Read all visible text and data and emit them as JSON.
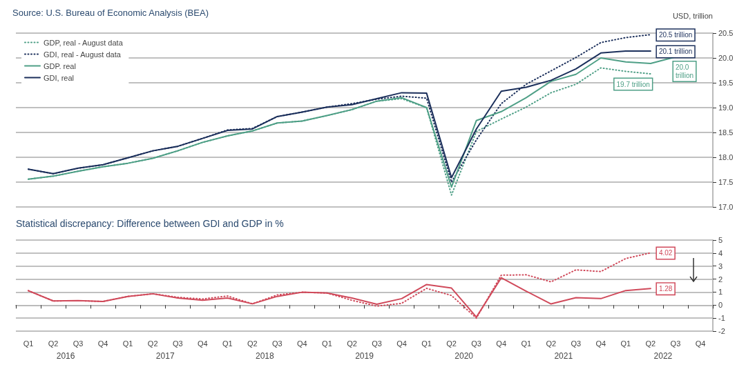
{
  "chart_data": [
    {
      "type": "line",
      "annotations": [
        "Source: U.S. Bureau of Economic Analysis (BEA)"
      ],
      "ylabel": "USD, trillion",
      "categories": [
        null,
        null,
        null,
        null,
        null,
        null,
        null,
        null,
        null,
        null,
        null,
        null,
        null,
        null,
        null,
        null,
        null,
        null,
        null,
        null,
        null,
        null,
        null,
        null,
        null,
        null,
        null,
        null
      ],
      "ylim": [
        17,
        20.5
      ],
      "yticks": [
        {
          "value": 17,
          "label": "17.0"
        },
        {
          "value": 17.5,
          "label": "17.5"
        },
        {
          "value": 18,
          "label": "18.0"
        },
        {
          "value": 18.5,
          "label": "18.5"
        },
        {
          "value": 19,
          "label": "19.0"
        },
        {
          "value": 19.5,
          "label": "19.5"
        },
        {
          "value": 20,
          "label": "20.0"
        },
        {
          "value": 20.5,
          "label": "20.5"
        }
      ],
      "tick_labels": "y",
      "grid": "y",
      "legend": "top left",
      "marker": "none",
      "series": [
        {
          "name": "GDP, real - August data",
          "color": "#4e9f86",
          "line_style": "dotted",
          "values": [
            17.56,
            17.62,
            17.72,
            17.81,
            17.88,
            17.98,
            18.13,
            18.3,
            18.43,
            18.53,
            18.69,
            18.73,
            18.84,
            18.96,
            19.13,
            19.18,
            19.0,
            17.24,
            18.52,
            18.77,
            19.01,
            19.3,
            19.47,
            19.8,
            19.73,
            19.68,
            null,
            null
          ],
          "value_labels": [
            null,
            null,
            null,
            null,
            null,
            null,
            null,
            null,
            null,
            null,
            null,
            null,
            null,
            null,
            null,
            null,
            null,
            null,
            null,
            null,
            null,
            null,
            null,
            null,
            null,
            "19.7 trillion",
            null,
            null
          ]
        },
        {
          "name": "GDI, real - August data",
          "color": "#1b2f5b",
          "line_style": "dotted",
          "values": [
            17.76,
            17.67,
            17.78,
            17.85,
            17.99,
            18.13,
            18.22,
            18.38,
            18.55,
            18.58,
            18.82,
            18.91,
            19.01,
            19.08,
            19.17,
            19.23,
            19.19,
            17.5,
            18.35,
            19.08,
            19.47,
            19.74,
            20.01,
            20.31,
            20.41,
            20.47,
            null,
            null
          ],
          "value_labels": [
            null,
            null,
            null,
            null,
            null,
            null,
            null,
            null,
            null,
            null,
            null,
            null,
            null,
            null,
            null,
            null,
            null,
            null,
            null,
            null,
            null,
            null,
            null,
            null,
            null,
            "20.5 trillion",
            null,
            null
          ]
        },
        {
          "name": "GDP. real",
          "color": "#4e9f86",
          "line_style": "solid",
          "values": [
            17.56,
            17.62,
            17.72,
            17.81,
            17.88,
            17.98,
            18.13,
            18.3,
            18.43,
            18.53,
            18.69,
            18.73,
            18.84,
            18.96,
            19.13,
            19.2,
            19.0,
            17.4,
            18.74,
            18.92,
            19.2,
            19.53,
            19.67,
            20.0,
            19.92,
            19.89,
            20.02,
            null
          ],
          "value_labels": [
            null,
            null,
            null,
            null,
            null,
            null,
            null,
            null,
            null,
            null,
            null,
            null,
            null,
            null,
            null,
            null,
            null,
            null,
            null,
            null,
            null,
            null,
            null,
            null,
            null,
            null,
            "20.0 trillion",
            null
          ]
        },
        {
          "name": "GDI, real",
          "color": "#1b2f5b",
          "line_style": "solid",
          "values": [
            17.76,
            17.67,
            17.78,
            17.85,
            17.99,
            18.13,
            18.22,
            18.38,
            18.54,
            18.57,
            18.82,
            18.91,
            19.01,
            19.06,
            19.18,
            19.3,
            19.29,
            17.59,
            18.57,
            19.33,
            19.41,
            19.55,
            19.78,
            20.1,
            20.14,
            20.14,
            null,
            null
          ],
          "value_labels": [
            null,
            null,
            null,
            null,
            null,
            null,
            null,
            null,
            null,
            null,
            null,
            null,
            null,
            null,
            null,
            null,
            null,
            null,
            null,
            null,
            null,
            null,
            null,
            null,
            null,
            "20.1 trillion",
            null,
            null
          ]
        }
      ]
    },
    {
      "type": "line",
      "title": "Statistical discrepancy: Difference between GDI and GDP in %",
      "annotations": [
        "2016",
        "2017",
        "2018",
        "2019",
        "2020",
        "2021",
        "2022"
      ],
      "categories": [
        "Q1",
        "Q2",
        "Q3",
        "Q4",
        "Q1",
        "Q2",
        "Q3",
        "Q4",
        "Q1",
        "Q2",
        "Q3",
        "Q4",
        "Q1",
        "Q2",
        "Q3",
        "Q4",
        "Q1",
        "Q2",
        "Q3",
        "Q4",
        "Q1",
        "Q2",
        "Q3",
        "Q4",
        "Q1",
        "Q2",
        "Q3",
        "Q4"
      ],
      "ylim": [
        -2,
        5
      ],
      "yticks": [
        -2,
        -1,
        0,
        1,
        2,
        3,
        4,
        5
      ],
      "grid": "y",
      "legend": false,
      "marker": "none",
      "series": [
        {
          "color": "#d0495a",
          "line_style": "dotted",
          "values": [
            1.11,
            0.32,
            0.34,
            0.28,
            0.67,
            0.87,
            0.6,
            0.47,
            0.7,
            0.1,
            0.78,
            0.99,
            0.93,
            0.37,
            -0.08,
            0.14,
            1.29,
            0.74,
            -1.0,
            2.3,
            2.33,
            1.79,
            2.71,
            2.58,
            3.58,
            4.02,
            null,
            null
          ],
          "value_labels": [
            null,
            null,
            null,
            null,
            null,
            null,
            null,
            null,
            null,
            null,
            null,
            null,
            null,
            null,
            null,
            null,
            null,
            null,
            null,
            null,
            null,
            null,
            null,
            null,
            null,
            "4.02",
            null,
            null
          ]
        },
        {
          "color": "#d0495a",
          "line_style": "solid",
          "values": [
            1.11,
            0.32,
            0.34,
            0.28,
            0.67,
            0.87,
            0.55,
            0.37,
            0.55,
            0.1,
            0.67,
            0.99,
            0.93,
            0.55,
            0.07,
            0.5,
            1.58,
            1.31,
            -0.92,
            2.1,
            1.07,
            0.09,
            0.57,
            0.5,
            1.12,
            1.28,
            null,
            null
          ],
          "value_labels": [
            null,
            null,
            null,
            null,
            null,
            null,
            null,
            null,
            null,
            null,
            null,
            null,
            null,
            null,
            null,
            null,
            null,
            null,
            null,
            null,
            null,
            null,
            null,
            null,
            null,
            "1.28",
            null,
            null
          ]
        }
      ]
    }
  ]
}
